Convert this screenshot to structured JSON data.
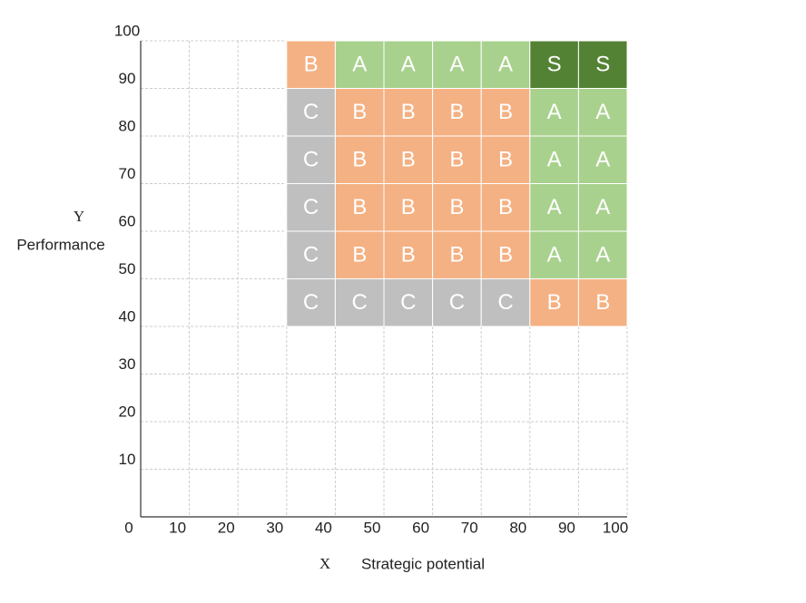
{
  "chart_data": {
    "type": "grid-matrix",
    "xlabel_symbol": "X",
    "xlabel": "Strategic potential",
    "ylabel_symbol": "Y",
    "ylabel": "Performance",
    "xlim": [
      0,
      100
    ],
    "ylim": [
      0,
      100
    ],
    "xticks": [
      0,
      10,
      20,
      30,
      40,
      50,
      60,
      70,
      80,
      90,
      100
    ],
    "yticks": [
      10,
      20,
      30,
      40,
      50,
      60,
      70,
      80,
      90,
      100
    ],
    "grid": true,
    "xbins": [
      30,
      40,
      50,
      60,
      70,
      80,
      90,
      100
    ],
    "ybins": [
      100,
      90,
      80,
      70,
      60,
      50,
      40
    ],
    "grades": [
      [
        "B",
        "A",
        "A",
        "A",
        "A",
        "S",
        "S"
      ],
      [
        "C",
        "B",
        "B",
        "B",
        "B",
        "A",
        "A"
      ],
      [
        "C",
        "B",
        "B",
        "B",
        "B",
        "A",
        "A"
      ],
      [
        "C",
        "B",
        "B",
        "B",
        "B",
        "A",
        "A"
      ],
      [
        "C",
        "B",
        "B",
        "B",
        "B",
        "A",
        "A"
      ],
      [
        "C",
        "C",
        "C",
        "C",
        "C",
        "B",
        "B"
      ]
    ],
    "grade_colors": {
      "S": "#548235",
      "A": "#a9d18e",
      "B": "#f4b183",
      "C": "#bfbfbf"
    }
  }
}
